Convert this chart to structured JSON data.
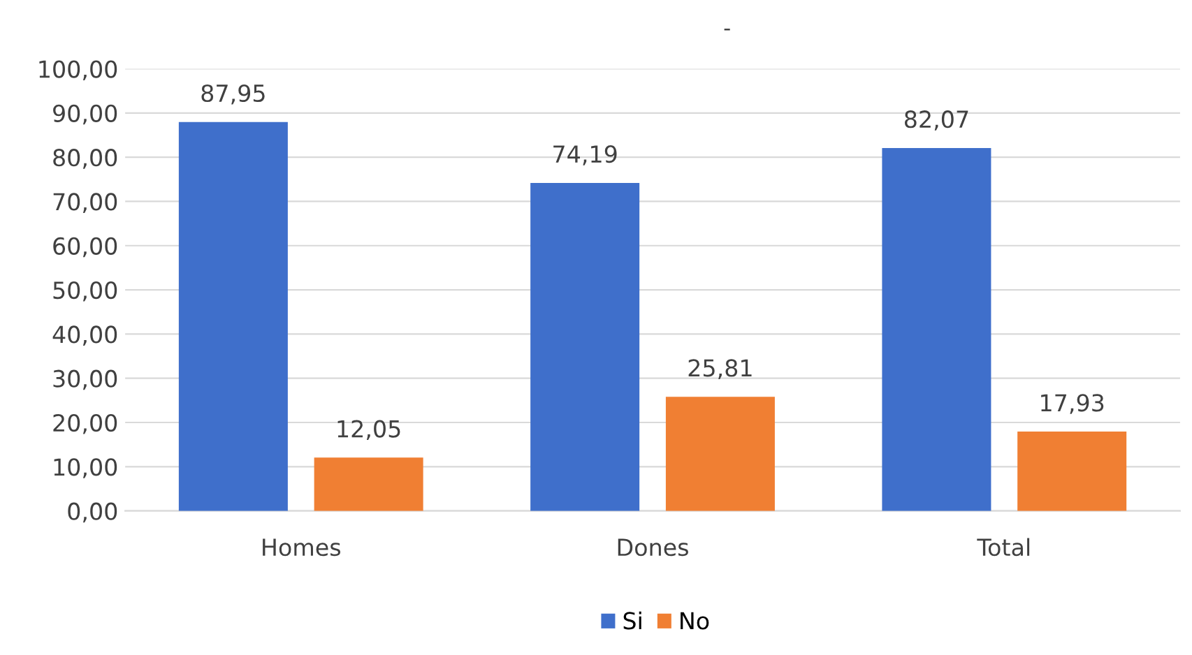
{
  "chart_data": {
    "type": "bar",
    "title": "-",
    "categories": [
      "Homes",
      "Dones",
      "Total"
    ],
    "series": [
      {
        "name": "Si",
        "color": "#3f6fcb",
        "values": [
          87.95,
          74.19,
          82.07
        ],
        "value_labels": [
          "87,95",
          "74,19",
          "82,07"
        ]
      },
      {
        "name": "No",
        "color": "#f07f33",
        "values": [
          12.05,
          25.81,
          17.93
        ],
        "value_labels": [
          "12,05",
          "25,81",
          "17,93"
        ]
      }
    ],
    "ylim": [
      0,
      100
    ],
    "yticks": [
      {
        "value": 0,
        "label": "0,00"
      },
      {
        "value": 10,
        "label": "10,00"
      },
      {
        "value": 20,
        "label": "20,00"
      },
      {
        "value": 30,
        "label": "30,00"
      },
      {
        "value": 40,
        "label": "40,00"
      },
      {
        "value": 50,
        "label": "50,00"
      },
      {
        "value": 60,
        "label": "60,00"
      },
      {
        "value": 70,
        "label": "70,00"
      },
      {
        "value": 80,
        "label": "80,00"
      },
      {
        "value": 90,
        "label": "90,00"
      },
      {
        "value": 100,
        "label": "100,00"
      }
    ],
    "grid": "y",
    "legend": "bottom"
  }
}
